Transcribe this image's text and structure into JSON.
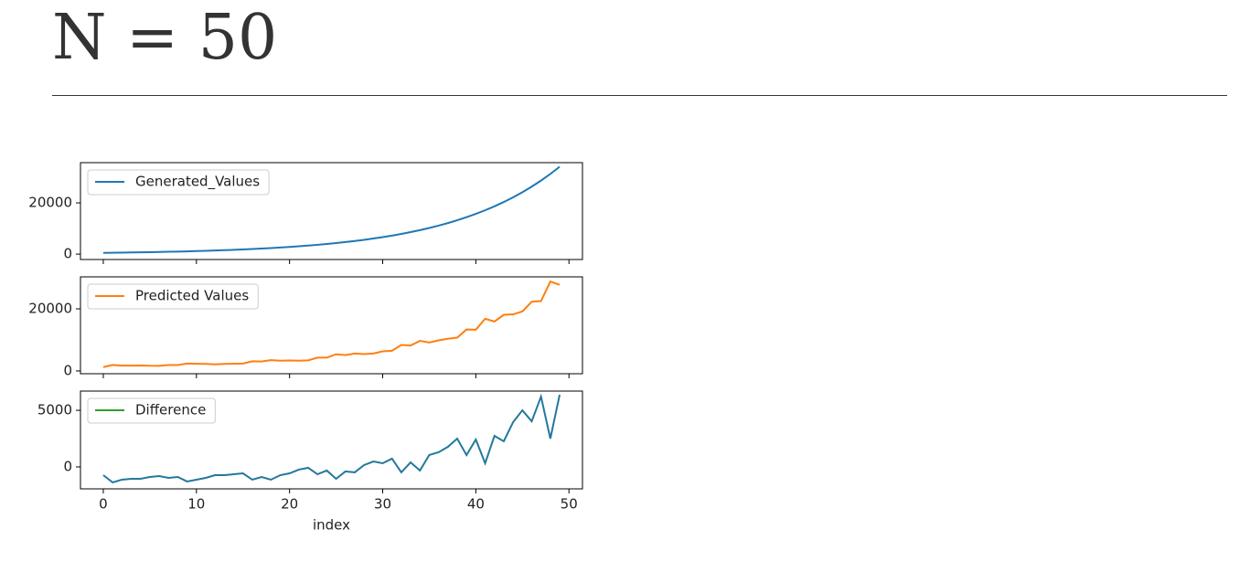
{
  "heading": "N = 50",
  "chart_data": [
    {
      "type": "line",
      "legend": "upper left",
      "x_tick_labels": false,
      "x": [
        0,
        1,
        2,
        3,
        4,
        5,
        6,
        7,
        8,
        9,
        10,
        11,
        12,
        13,
        14,
        15,
        16,
        17,
        18,
        19,
        20,
        21,
        22,
        23,
        24,
        25,
        26,
        27,
        28,
        29,
        30,
        31,
        32,
        33,
        34,
        35,
        36,
        37,
        38,
        39,
        40,
        41,
        42,
        43,
        44,
        45,
        46,
        47,
        48,
        49
      ],
      "xlim": [
        -2.45,
        51.45
      ],
      "xticks": [
        0,
        10,
        20,
        30,
        40,
        50
      ],
      "ylim": [
        -2100,
        35700
      ],
      "yticks": [
        0,
        20000
      ],
      "series": [
        {
          "name": "Generated_Values",
          "color": "#1f77b4",
          "values": [
            500,
            545,
            594,
            648,
            706,
            769,
            839,
            914,
            996,
            1086,
            1184,
            1290,
            1406,
            1533,
            1671,
            1821,
            1985,
            2164,
            2358,
            2570,
            2802,
            3054,
            3329,
            3628,
            3955,
            4311,
            4699,
            5121,
            5582,
            6085,
            6632,
            7229,
            7880,
            8589,
            9362,
            10205,
            11123,
            12124,
            13216,
            14405,
            15702,
            17115,
            18655,
            20334,
            22164,
            24159,
            26333,
            28703,
            31286,
            34102
          ]
        }
      ]
    },
    {
      "type": "line",
      "legend": "upper left",
      "x_tick_labels": false,
      "x": [
        0,
        1,
        2,
        3,
        4,
        5,
        6,
        7,
        8,
        9,
        10,
        11,
        12,
        13,
        14,
        15,
        16,
        17,
        18,
        19,
        20,
        21,
        22,
        23,
        24,
        25,
        26,
        27,
        28,
        29,
        30,
        31,
        32,
        33,
        34,
        35,
        36,
        37,
        38,
        39,
        40,
        41,
        42,
        43,
        44,
        45,
        46,
        47,
        48,
        49
      ],
      "xlim": [
        -2.45,
        51.45
      ],
      "xticks": [
        0,
        10,
        20,
        30,
        40,
        50
      ],
      "ylim": [
        -900,
        30300
      ],
      "yticks": [
        0,
        20000
      ],
      "series": [
        {
          "name": "Predicted Values",
          "color": "#ff7f0e",
          "values": [
            1230,
            1915,
            1724,
            1698,
            1756,
            1659,
            1649,
            1884,
            1886,
            2376,
            2314,
            2260,
            2136,
            2263,
            2321,
            2391,
            3115,
            3054,
            3488,
            3300,
            3372,
            3294,
            3409,
            4278,
            4275,
            5361,
            5099,
            5601,
            5422,
            5605,
            6312,
            6499,
            8360,
            8189,
            9682,
            9155,
            9833,
            10354,
            10716,
            13355,
            13282,
            16795,
            15915,
            18074,
            18214,
            19159,
            22303,
            22493,
            28786,
            27732
          ]
        }
      ]
    },
    {
      "type": "line",
      "legend": "upper left",
      "x_tick_labels": true,
      "x_label": "index",
      "line_color": "#23789c",
      "x": [
        0,
        1,
        2,
        3,
        4,
        5,
        6,
        7,
        8,
        9,
        10,
        11,
        12,
        13,
        14,
        15,
        16,
        17,
        18,
        19,
        20,
        21,
        22,
        23,
        24,
        25,
        26,
        27,
        28,
        29,
        30,
        31,
        32,
        33,
        34,
        35,
        36,
        37,
        38,
        39,
        40,
        41,
        42,
        43,
        44,
        45,
        46,
        47,
        48,
        49
      ],
      "xlim": [
        -2.45,
        51.45
      ],
      "xticks": [
        0,
        10,
        20,
        30,
        40,
        50
      ],
      "ylim": [
        -1940,
        6700
      ],
      "yticks": [
        0,
        5000
      ],
      "series": [
        {
          "name": "Difference",
          "color": "#2ca02c",
          "values": [
            -730,
            -1370,
            -1130,
            -1050,
            -1050,
            -890,
            -810,
            -970,
            -890,
            -1290,
            -1130,
            -970,
            -730,
            -730,
            -650,
            -570,
            -1130,
            -890,
            -1130,
            -730,
            -570,
            -240,
            -80,
            -650,
            -320,
            -1050,
            -400,
            -480,
            160,
            480,
            320,
            730,
            -480,
            400,
            -320,
            1050,
            1290,
            1770,
            2500,
            1050,
            2420,
            320,
            2740,
            2260,
            3950,
            5000,
            4030,
            6210,
            2500,
            6370
          ]
        }
      ]
    }
  ]
}
